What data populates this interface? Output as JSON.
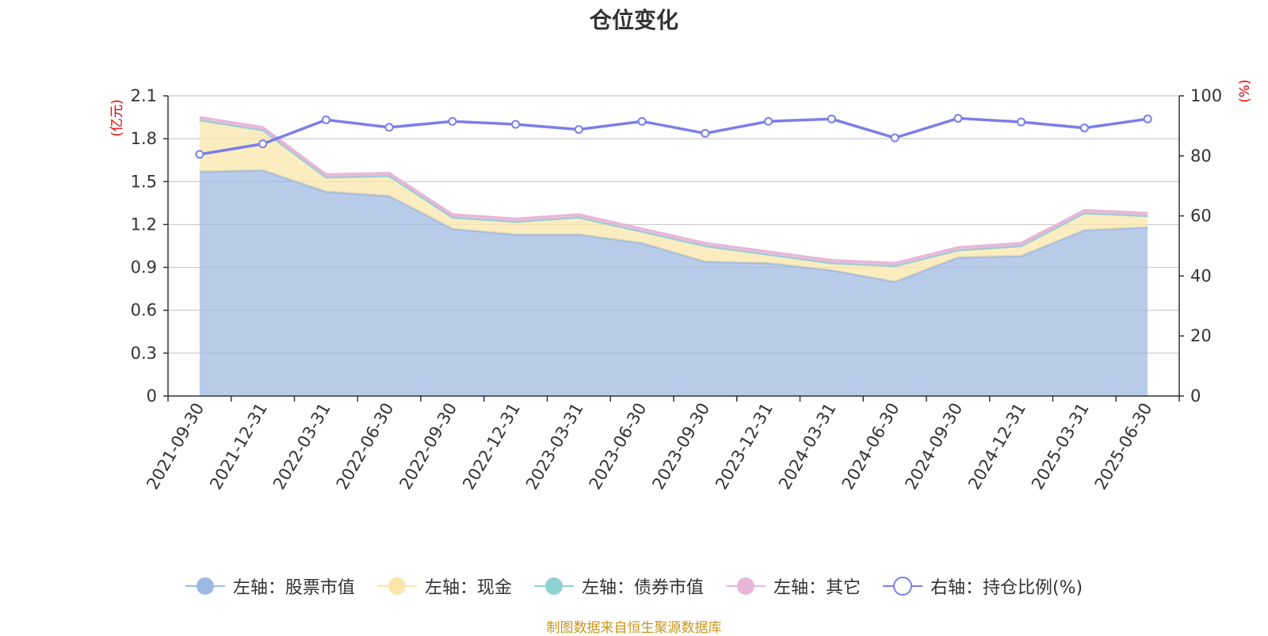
{
  "chart_data": {
    "type": "area",
    "title": "仓位变化",
    "x": [
      "2021-09-30",
      "2021-12-31",
      "2022-03-31",
      "2022-06-30",
      "2022-09-30",
      "2022-12-31",
      "2023-03-31",
      "2023-06-30",
      "2023-09-30",
      "2023-12-31",
      "2024-03-31",
      "2024-06-30",
      "2024-09-30",
      "2024-12-31",
      "2025-03-31",
      "2025-06-30"
    ],
    "left_axis": {
      "unit": "(亿元)",
      "ylim": [
        0,
        2.1
      ],
      "ticks": [
        "0",
        "0.3",
        "0.6",
        "0.9",
        "1.2",
        "1.5",
        "1.8",
        "2.1"
      ]
    },
    "right_axis": {
      "unit": "(%)",
      "ylim": [
        0,
        100
      ],
      "ticks": [
        "0",
        "20",
        "40",
        "60",
        "80",
        "100"
      ]
    },
    "series": [
      {
        "name": "左轴：股票市值",
        "axis": "left",
        "type": "area",
        "color": "#9db9e2",
        "values": [
          1.57,
          1.58,
          1.43,
          1.4,
          1.17,
          1.13,
          1.13,
          1.07,
          0.94,
          0.93,
          0.88,
          0.8,
          0.97,
          0.98,
          1.16,
          1.18
        ]
      },
      {
        "name": "左轴：现金",
        "axis": "left",
        "type": "area",
        "color": "#f9e6a8",
        "values": [
          0.36,
          0.28,
          0.1,
          0.14,
          0.08,
          0.09,
          0.12,
          0.08,
          0.11,
          0.06,
          0.05,
          0.11,
          0.05,
          0.07,
          0.12,
          0.08
        ]
      },
      {
        "name": "左轴：债券市值",
        "axis": "left",
        "type": "area",
        "color": "#8fd2d3",
        "values": [
          0,
          0,
          0,
          0,
          0,
          0,
          0,
          0,
          0,
          0,
          0,
          0,
          0,
          0,
          0,
          0
        ]
      },
      {
        "name": "左轴：其它",
        "axis": "left",
        "type": "area",
        "color": "#e8b5d9",
        "values": [
          0.02,
          0.02,
          0.02,
          0.02,
          0.02,
          0.02,
          0.02,
          0.02,
          0.02,
          0.02,
          0.02,
          0.02,
          0.02,
          0.02,
          0.02,
          0.02
        ]
      },
      {
        "name": "右轴：持仓比例(%)",
        "axis": "right",
        "type": "line",
        "color": "#7b7fe8",
        "values": [
          80.5,
          84.0,
          92.0,
          89.5,
          91.5,
          90.5,
          88.8,
          91.5,
          87.5,
          91.5,
          92.3,
          86.0,
          92.5,
          91.3,
          89.3,
          92.3
        ]
      }
    ],
    "legend_position": "bottom",
    "grid": true
  },
  "footer": "制图数据来自恒生聚源数据库"
}
